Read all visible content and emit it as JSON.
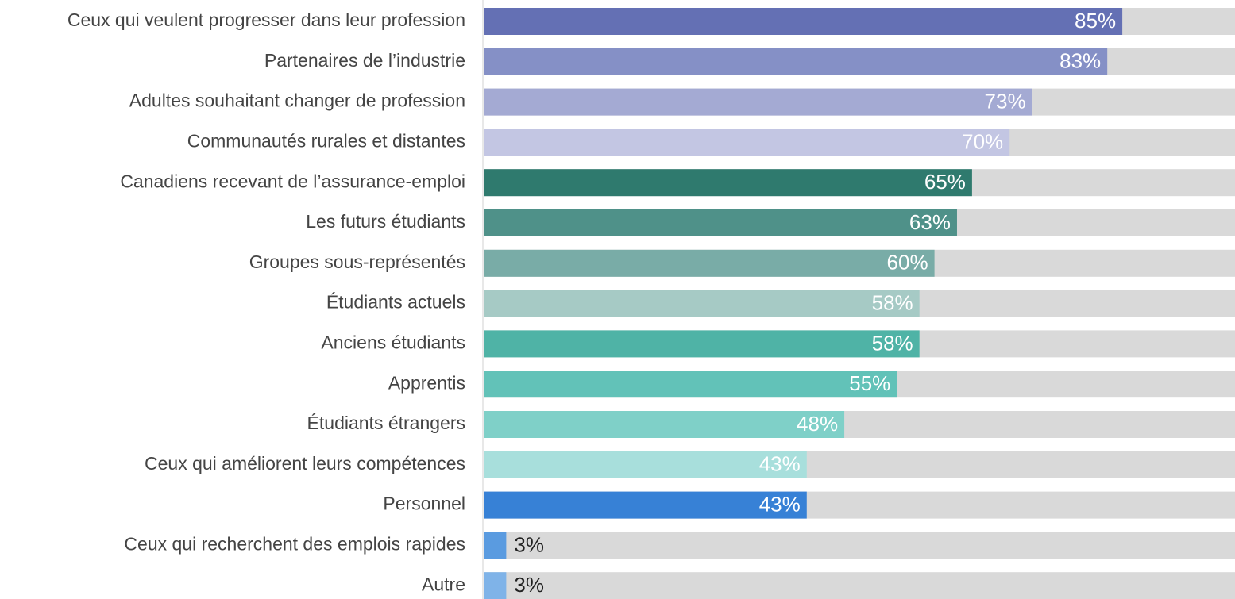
{
  "chart_data": {
    "type": "bar",
    "orientation": "horizontal",
    "categories": [
      "Ceux qui veulent progresser dans leur profession",
      "Partenaires de l’industrie",
      "Adultes souhaitant changer de profession",
      "Communautés rurales et distantes",
      "Canadiens recevant de l’assurance-emploi",
      "Les futurs étudiants",
      "Groupes sous-représentés",
      "Étudiants actuels",
      "Anciens étudiants",
      "Apprentis",
      "Étudiants étrangers",
      "Ceux qui améliorent leurs compétences",
      "Personnel",
      "Ceux qui recherchent des emplois rapides",
      "Autre"
    ],
    "values": [
      85,
      83,
      73,
      70,
      65,
      63,
      60,
      58,
      58,
      55,
      48,
      43,
      43,
      3,
      3
    ],
    "value_labels": [
      "85%",
      "83%",
      "73%",
      "70%",
      "65%",
      "63%",
      "60%",
      "58%",
      "58%",
      "55%",
      "48%",
      "43%",
      "43%",
      "3%",
      "3%"
    ],
    "colors": [
      "#6470b4",
      "#8590c6",
      "#a4aad3",
      "#c3c6e3",
      "#2f7a6e",
      "#4f9189",
      "#79aca7",
      "#a6cac5",
      "#4fb3a6",
      "#62c2b8",
      "#7fd0c8",
      "#a8dfdc",
      "#3781d6",
      "#5a9be0",
      "#7fb3e8"
    ],
    "track_color": "#d9d9d9",
    "xlim": [
      0,
      100
    ]
  }
}
